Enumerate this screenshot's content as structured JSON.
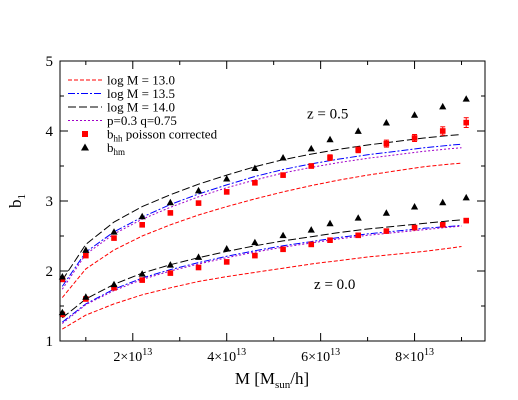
{
  "chart_data": {
    "type": "line",
    "xlabel": "M [M",
    "xlabel_sub": "sun",
    "xlabel_tail": "/h]",
    "ylabel": "b",
    "ylabel_sub": "1",
    "xlim": [
      4500000000000.0,
      95000000000000.0
    ],
    "ylim": [
      1,
      5
    ],
    "grid": false,
    "legend_position": "top-left",
    "x_ticks": [
      {
        "value": 20000000000000.0,
        "mant": "2×10",
        "exp": "13"
      },
      {
        "value": 40000000000000.0,
        "mant": "4×10",
        "exp": "13"
      },
      {
        "value": 60000000000000.0,
        "mant": "6×10",
        "exp": "13"
      },
      {
        "value": 80000000000000.0,
        "mant": "8×10",
        "exp": "13"
      }
    ],
    "y_ticks": [
      {
        "value": 1,
        "label": "1"
      },
      {
        "value": 2,
        "label": "2"
      },
      {
        "value": 3,
        "label": "3"
      },
      {
        "value": 4,
        "label": "4"
      },
      {
        "value": 5,
        "label": "5"
      }
    ],
    "annotations": [
      {
        "text": "z = 0.5",
        "x": 61500000000000.0,
        "y": 4.18
      },
      {
        "text": "z = 0.0",
        "x": 63000000000000.0,
        "y": 1.74
      }
    ],
    "legend": [
      {
        "label": "log M = 13.0",
        "kind": "line",
        "color": "#ff0000",
        "dash": "4,2"
      },
      {
        "label": "log M = 13.5",
        "kind": "line",
        "color": "#0000ff",
        "dash": "7,2,2,2"
      },
      {
        "label": "log M = 14.0",
        "kind": "line",
        "color": "#000000",
        "dash": "8,3"
      },
      {
        "label": "p=0.3 q=0.75",
        "kind": "line",
        "color": "#a000c8",
        "dash": "2,2"
      },
      {
        "label": "b",
        "sub": "hh",
        "suffix": "poisson corrected",
        "kind": "square",
        "color": "#ff0000"
      },
      {
        "label": "b",
        "sub": "hm",
        "suffix": "",
        "kind": "triangle",
        "color": "#000000"
      }
    ],
    "x": [
      5000000000000.0,
      10000000000000.0,
      16000000000000.0,
      22000000000000.0,
      28000000000000.0,
      34000000000000.0,
      40000000000000.0,
      46000000000000.0,
      52000000000000.0,
      58000000000000.0,
      64000000000000.0,
      70000000000000.0,
      76000000000000.0,
      82000000000000.0,
      88000000000000.0,
      90000000000000.0
    ],
    "series": [
      {
        "name": "log M = 13.0",
        "group": "z = 0.5",
        "color": "#ff0000",
        "dash": "4,2",
        "values": [
          1.62,
          2.03,
          2.3,
          2.5,
          2.66,
          2.8,
          2.92,
          3.03,
          3.13,
          3.22,
          3.3,
          3.37,
          3.43,
          3.49,
          3.53,
          3.54
        ]
      },
      {
        "name": "log M = 13.5",
        "group": "z = 0.5",
        "color": "#0000ff",
        "dash": "7,2,2,2",
        "values": [
          1.78,
          2.27,
          2.56,
          2.77,
          2.95,
          3.1,
          3.23,
          3.35,
          3.45,
          3.53,
          3.6,
          3.66,
          3.71,
          3.76,
          3.8,
          3.81
        ]
      },
      {
        "name": "log M = 14.0",
        "group": "z = 0.5",
        "color": "#000000",
        "dash": "8,3",
        "values": [
          1.87,
          2.38,
          2.7,
          2.92,
          3.09,
          3.24,
          3.37,
          3.49,
          3.59,
          3.67,
          3.74,
          3.8,
          3.85,
          3.9,
          3.94,
          3.95
        ]
      },
      {
        "name": "p=0.3 q=0.75",
        "group": "z = 0.5",
        "color": "#a000c8",
        "dash": "2,2",
        "values": [
          1.74,
          2.24,
          2.53,
          2.74,
          2.91,
          3.06,
          3.19,
          3.3,
          3.4,
          3.48,
          3.55,
          3.61,
          3.66,
          3.71,
          3.75,
          3.76
        ]
      },
      {
        "name": "log M = 13.0",
        "group": "z = 0.0",
        "color": "#ff0000",
        "dash": "4,2",
        "values": [
          1.17,
          1.37,
          1.53,
          1.66,
          1.76,
          1.85,
          1.92,
          1.98,
          2.04,
          2.1,
          2.15,
          2.2,
          2.24,
          2.28,
          2.33,
          2.35
        ]
      },
      {
        "name": "log M = 13.5",
        "group": "z = 0.0",
        "color": "#0000ff",
        "dash": "7,2,2,2",
        "values": [
          1.27,
          1.53,
          1.74,
          1.9,
          2.02,
          2.12,
          2.21,
          2.29,
          2.36,
          2.42,
          2.48,
          2.53,
          2.57,
          2.61,
          2.64,
          2.65
        ]
      },
      {
        "name": "log M = 14.0",
        "group": "z = 0.0",
        "color": "#000000",
        "dash": "8,3",
        "values": [
          1.33,
          1.6,
          1.81,
          1.97,
          2.09,
          2.19,
          2.28,
          2.36,
          2.43,
          2.49,
          2.55,
          2.6,
          2.64,
          2.68,
          2.72,
          2.73
        ]
      },
      {
        "name": "p=0.3 q=0.75",
        "group": "z = 0.0",
        "color": "#a000c8",
        "dash": "2,2",
        "values": [
          1.25,
          1.52,
          1.72,
          1.88,
          2.0,
          2.1,
          2.19,
          2.27,
          2.34,
          2.4,
          2.46,
          2.51,
          2.55,
          2.59,
          2.63,
          2.64
        ]
      }
    ],
    "points": [
      {
        "name": "b_hh poisson corrected",
        "group": "z = 0.5",
        "marker": "square",
        "color": "#ff0000",
        "x": [
          5000000000000.0,
          10000000000000.0,
          16000000000000.0,
          22000000000000.0,
          28000000000000.0,
          34000000000000.0,
          40000000000000.0,
          46000000000000.0,
          52000000000000.0,
          58000000000000.0,
          62000000000000.0,
          68000000000000.0,
          74000000000000.0,
          80000000000000.0,
          86000000000000.0,
          91000000000000.0
        ],
        "y": [
          1.88,
          2.22,
          2.47,
          2.66,
          2.83,
          2.97,
          3.13,
          3.26,
          3.37,
          3.5,
          3.62,
          3.73,
          3.82,
          3.9,
          4.0,
          4.12
        ],
        "err": [
          0.02,
          0.02,
          0.02,
          0.02,
          0.02,
          0.02,
          0.03,
          0.03,
          0.03,
          0.03,
          0.04,
          0.04,
          0.05,
          0.05,
          0.06,
          0.07
        ]
      },
      {
        "name": "b_hm",
        "group": "z = 0.5",
        "marker": "triangle",
        "color": "#000000",
        "x": [
          5000000000000.0,
          10000000000000.0,
          16000000000000.0,
          22000000000000.0,
          28000000000000.0,
          34000000000000.0,
          40000000000000.0,
          46000000000000.0,
          52000000000000.0,
          58000000000000.0,
          62000000000000.0,
          68000000000000.0,
          74000000000000.0,
          80000000000000.0,
          86000000000000.0,
          91000000000000.0
        ],
        "y": [
          1.92,
          2.3,
          2.56,
          2.78,
          2.98,
          3.15,
          3.32,
          3.47,
          3.62,
          3.75,
          3.88,
          4.0,
          4.12,
          4.23,
          4.35,
          4.46
        ]
      },
      {
        "name": "b_hh poisson corrected",
        "group": "z = 0.0",
        "marker": "square",
        "color": "#ff0000",
        "x": [
          5000000000000.0,
          10000000000000.0,
          16000000000000.0,
          22000000000000.0,
          28000000000000.0,
          34000000000000.0,
          40000000000000.0,
          46000000000000.0,
          52000000000000.0,
          58000000000000.0,
          62000000000000.0,
          68000000000000.0,
          74000000000000.0,
          80000000000000.0,
          86000000000000.0,
          91000000000000.0
        ],
        "y": [
          1.38,
          1.6,
          1.76,
          1.87,
          1.97,
          2.05,
          2.13,
          2.22,
          2.31,
          2.38,
          2.44,
          2.51,
          2.57,
          2.62,
          2.66,
          2.72
        ],
        "err": [
          0.01,
          0.01,
          0.01,
          0.01,
          0.01,
          0.01,
          0.01,
          0.01,
          0.01,
          0.02,
          0.02,
          0.02,
          0.02,
          0.03,
          0.03,
          0.03
        ]
      },
      {
        "name": "b_hm",
        "group": "z = 0.0",
        "marker": "triangle",
        "color": "#000000",
        "x": [
          5000000000000.0,
          10000000000000.0,
          16000000000000.0,
          22000000000000.0,
          28000000000000.0,
          34000000000000.0,
          40000000000000.0,
          46000000000000.0,
          52000000000000.0,
          58000000000000.0,
          62000000000000.0,
          68000000000000.0,
          74000000000000.0,
          80000000000000.0,
          86000000000000.0,
          91000000000000.0
        ],
        "y": [
          1.41,
          1.63,
          1.81,
          1.96,
          2.09,
          2.2,
          2.32,
          2.41,
          2.51,
          2.59,
          2.68,
          2.76,
          2.83,
          2.92,
          2.98,
          3.05
        ]
      }
    ]
  }
}
